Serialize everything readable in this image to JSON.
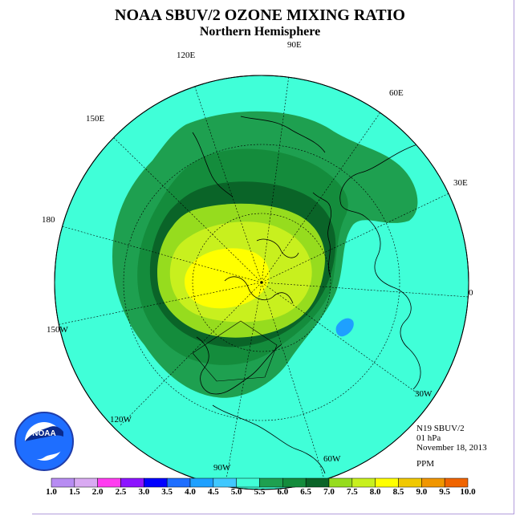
{
  "title": "NOAA SBUV/2 OZONE MIXING RATIO",
  "subtitle": "Northern Hemisphere",
  "longitude_labels": {
    "l90e": "90E",
    "l60e": "60E",
    "l30e": "30E",
    "l0": "0",
    "l30w": "30W",
    "l60w": "60W",
    "l90w": "90W",
    "l120w": "120W",
    "l150w": "150W",
    "l180": "180",
    "l150e": "150E",
    "l120e": "120E"
  },
  "info": {
    "instrument": "N19 SBUV/2",
    "level": "01 hPa",
    "date": "November 18, 2013",
    "units": "PPM"
  },
  "logo": {
    "text": "NOAA",
    "ring_text": "NATIONAL OCEANIC AND ATMOSPHERIC ADMINISTRATION U.S. DEPARTMENT OF COMMERCE"
  },
  "colorbar": {
    "ticks": [
      "1.0",
      "1.5",
      "2.0",
      "2.5",
      "3.0",
      "3.5",
      "4.0",
      "4.5",
      "5.0",
      "5.5",
      "6.0",
      "6.5",
      "7.0",
      "7.5",
      "8.0",
      "8.5",
      "9.0",
      "9.5",
      "10.0"
    ],
    "colors": [
      "#b78cf2",
      "#d9aaf2",
      "#ff3cf0",
      "#8c14ff",
      "#0000ff",
      "#1e6eff",
      "#1ea0ff",
      "#40c8ff",
      "#40ffd8",
      "#1ea050",
      "#148c3c",
      "#0a6428",
      "#96dc1e",
      "#c8f01e",
      "#ffff00",
      "#f0c800",
      "#f09600",
      "#f06400",
      "#f00000",
      "#8c5028"
    ]
  },
  "contour_colors": {
    "c45_50": "#40ffd8",
    "c50_55": "#1ea050",
    "c55_60": "#148c3c",
    "c60_65": "#0a6428",
    "c65_70": "#96dc1e",
    "c70_75": "#c8f01e",
    "c75_80": "#ffff00",
    "c35_40": "#1ea0ff"
  }
}
